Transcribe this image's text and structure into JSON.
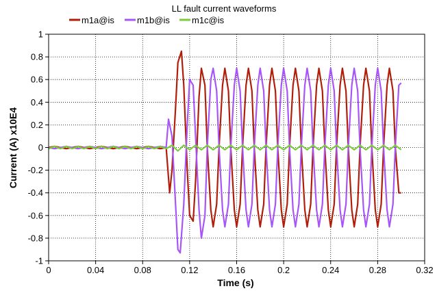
{
  "chart_data": {
    "type": "line",
    "title": "LL fault current waveforms",
    "xlabel": "Time (s)",
    "ylabel": "Current (A) x10E4",
    "xlim": [
      0,
      0.32
    ],
    "ylim": [
      -1,
      1
    ],
    "x_ticks": [
      0,
      0.04,
      0.08,
      0.12,
      0.16,
      0.2,
      0.24,
      0.28,
      0.32
    ],
    "x_tick_labels": [
      "0",
      "0.04",
      "0.08",
      "0.12",
      "0.16",
      "0.2",
      "0.24",
      "0.28",
      "0.32"
    ],
    "y_ticks": [
      -1,
      -0.8,
      -0.6,
      -0.4,
      -0.2,
      0,
      0.2,
      0.4,
      0.6,
      0.8,
      1
    ],
    "y_tick_labels": [
      "-1",
      "-0.8",
      "-0.6",
      "-0.4",
      "-0.2",
      "0",
      "0.2",
      "0.4",
      "0.6",
      "0.8",
      "1"
    ],
    "grid": true,
    "legend_position": "top-left",
    "series": [
      {
        "name": "m1a@is",
        "color": "#b01e0a",
        "x": [
          0.0,
          0.005,
          0.01,
          0.015,
          0.02,
          0.025,
          0.03,
          0.035,
          0.04,
          0.045,
          0.05,
          0.055,
          0.06,
          0.065,
          0.07,
          0.075,
          0.08,
          0.085,
          0.09,
          0.095,
          0.1,
          0.103,
          0.105,
          0.108,
          0.11,
          0.113,
          0.115,
          0.118,
          0.12,
          0.123,
          0.125,
          0.128,
          0.13,
          0.133,
          0.135,
          0.138,
          0.14,
          0.143,
          0.145,
          0.148,
          0.15,
          0.153,
          0.155,
          0.158,
          0.16,
          0.163,
          0.165,
          0.168,
          0.17,
          0.173,
          0.175,
          0.178,
          0.18,
          0.183,
          0.185,
          0.188,
          0.19,
          0.193,
          0.195,
          0.198,
          0.2,
          0.203,
          0.205,
          0.208,
          0.21,
          0.213,
          0.215,
          0.218,
          0.22,
          0.223,
          0.225,
          0.228,
          0.23,
          0.233,
          0.235,
          0.238,
          0.24,
          0.243,
          0.245,
          0.248,
          0.25,
          0.253,
          0.255,
          0.258,
          0.26,
          0.263,
          0.265,
          0.268,
          0.27,
          0.273,
          0.275,
          0.278,
          0.28,
          0.283,
          0.285,
          0.288,
          0.29,
          0.293,
          0.295,
          0.298,
          0.3
        ],
        "y": [
          0.0,
          0.01,
          0.0,
          -0.01,
          0.0,
          0.01,
          0.0,
          -0.01,
          0.0,
          0.01,
          0.0,
          -0.01,
          0.0,
          0.01,
          0.0,
          -0.01,
          0.0,
          0.01,
          0.0,
          -0.01,
          0.0,
          -0.4,
          -0.2,
          0.35,
          0.75,
          0.85,
          0.55,
          -0.2,
          -0.6,
          -0.65,
          -0.3,
          0.45,
          0.7,
          0.55,
          0.0,
          -0.55,
          -0.7,
          -0.5,
          0.0,
          0.55,
          0.7,
          0.5,
          0.0,
          -0.55,
          -0.7,
          -0.5,
          0.0,
          0.55,
          0.7,
          0.5,
          0.0,
          -0.55,
          -0.7,
          -0.5,
          0.0,
          0.55,
          0.7,
          0.5,
          0.0,
          -0.55,
          -0.7,
          -0.5,
          0.0,
          0.55,
          0.7,
          0.5,
          0.0,
          -0.55,
          -0.7,
          -0.5,
          0.0,
          0.55,
          0.7,
          0.5,
          0.0,
          -0.55,
          -0.7,
          -0.5,
          0.0,
          0.55,
          0.7,
          0.5,
          0.0,
          -0.55,
          -0.7,
          -0.5,
          0.0,
          0.55,
          0.7,
          0.5,
          0.0,
          -0.55,
          -0.7,
          -0.5,
          0.0,
          0.55,
          0.7,
          0.5,
          0.0,
          -0.4,
          -0.4
        ]
      },
      {
        "name": "m1b@is",
        "color": "#a855f7",
        "x": [
          0.0,
          0.005,
          0.01,
          0.015,
          0.02,
          0.025,
          0.03,
          0.035,
          0.04,
          0.045,
          0.05,
          0.055,
          0.06,
          0.065,
          0.07,
          0.075,
          0.08,
          0.085,
          0.09,
          0.095,
          0.1,
          0.102,
          0.105,
          0.108,
          0.11,
          0.112,
          0.115,
          0.118,
          0.12,
          0.123,
          0.125,
          0.128,
          0.13,
          0.133,
          0.135,
          0.138,
          0.14,
          0.143,
          0.145,
          0.148,
          0.15,
          0.153,
          0.155,
          0.158,
          0.16,
          0.163,
          0.165,
          0.168,
          0.17,
          0.173,
          0.175,
          0.178,
          0.18,
          0.183,
          0.185,
          0.188,
          0.19,
          0.193,
          0.195,
          0.198,
          0.2,
          0.203,
          0.205,
          0.208,
          0.21,
          0.213,
          0.215,
          0.218,
          0.22,
          0.223,
          0.225,
          0.228,
          0.23,
          0.233,
          0.235,
          0.238,
          0.24,
          0.243,
          0.245,
          0.248,
          0.25,
          0.253,
          0.255,
          0.258,
          0.26,
          0.263,
          0.265,
          0.268,
          0.27,
          0.273,
          0.275,
          0.278,
          0.28,
          0.283,
          0.285,
          0.288,
          0.29,
          0.293,
          0.295,
          0.298,
          0.3
        ],
        "y": [
          0.0,
          -0.01,
          0.0,
          0.01,
          0.0,
          -0.01,
          0.0,
          0.01,
          0.0,
          -0.01,
          0.0,
          0.01,
          0.0,
          -0.01,
          0.0,
          0.01,
          0.0,
          -0.01,
          0.0,
          0.01,
          0.0,
          0.25,
          0.1,
          -0.5,
          -0.9,
          -0.93,
          -0.5,
          0.2,
          0.6,
          0.55,
          0.1,
          -0.55,
          -0.8,
          -0.6,
          0.0,
          0.6,
          0.7,
          0.5,
          0.0,
          -0.55,
          -0.7,
          -0.5,
          0.0,
          0.55,
          0.7,
          0.5,
          0.0,
          -0.55,
          -0.7,
          -0.5,
          0.0,
          0.55,
          0.7,
          0.5,
          0.0,
          -0.55,
          -0.7,
          -0.5,
          0.0,
          0.55,
          0.7,
          0.5,
          0.0,
          -0.55,
          -0.7,
          -0.5,
          0.0,
          0.55,
          0.7,
          0.5,
          0.0,
          -0.55,
          -0.7,
          -0.5,
          0.0,
          0.55,
          0.7,
          0.5,
          0.0,
          -0.55,
          -0.7,
          -0.5,
          0.0,
          0.55,
          0.7,
          0.5,
          0.0,
          -0.55,
          -0.7,
          -0.5,
          0.0,
          0.55,
          0.7,
          0.5,
          0.0,
          -0.55,
          -0.7,
          -0.5,
          0.0,
          0.55,
          0.57
        ]
      },
      {
        "name": "m1c@is",
        "color": "#7ccb3c",
        "x": [
          0.0,
          0.005,
          0.01,
          0.015,
          0.02,
          0.025,
          0.03,
          0.035,
          0.04,
          0.045,
          0.05,
          0.055,
          0.06,
          0.065,
          0.07,
          0.075,
          0.08,
          0.085,
          0.09,
          0.095,
          0.1,
          0.105,
          0.11,
          0.115,
          0.12,
          0.125,
          0.13,
          0.135,
          0.14,
          0.145,
          0.15,
          0.155,
          0.16,
          0.165,
          0.17,
          0.175,
          0.18,
          0.185,
          0.19,
          0.195,
          0.2,
          0.205,
          0.21,
          0.215,
          0.22,
          0.225,
          0.23,
          0.235,
          0.24,
          0.245,
          0.25,
          0.255,
          0.26,
          0.265,
          0.27,
          0.275,
          0.28,
          0.285,
          0.29,
          0.295,
          0.3
        ],
        "y": [
          -0.01,
          0.01,
          -0.01,
          0.01,
          -0.01,
          0.01,
          -0.01,
          0.01,
          -0.01,
          0.01,
          -0.01,
          0.01,
          -0.01,
          0.01,
          -0.01,
          0.01,
          -0.01,
          0.01,
          -0.01,
          0.01,
          -0.01,
          0.02,
          -0.03,
          0.02,
          -0.02,
          0.02,
          -0.02,
          0.02,
          -0.02,
          0.02,
          -0.02,
          0.02,
          -0.02,
          0.02,
          -0.02,
          0.02,
          -0.02,
          0.02,
          -0.02,
          0.02,
          -0.02,
          0.02,
          -0.02,
          0.02,
          -0.02,
          0.02,
          -0.02,
          0.02,
          -0.02,
          0.02,
          -0.02,
          0.02,
          -0.02,
          0.02,
          -0.02,
          0.02,
          -0.02,
          0.02,
          -0.02,
          0.02,
          -0.02
        ]
      }
    ]
  }
}
